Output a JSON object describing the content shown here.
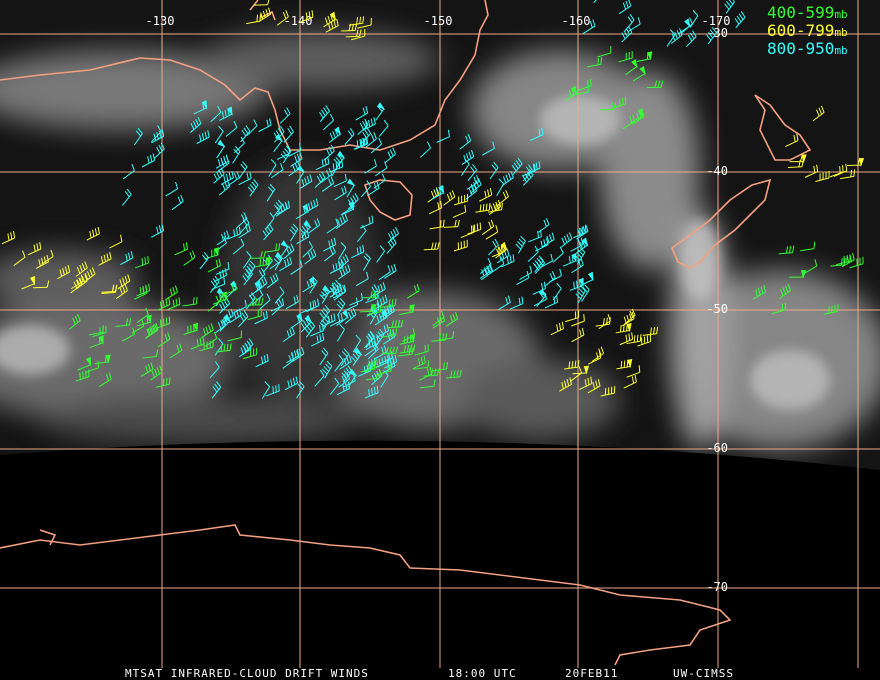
{
  "map": {
    "longitude_labels": [
      "-130",
      "-140",
      "-150",
      "-160",
      "-170"
    ],
    "latitude_labels": [
      "-30",
      "-40",
      "-50",
      "-60",
      "-70"
    ]
  },
  "legend": [
    {
      "range": "400-599",
      "unit": "mb",
      "color": "#33ff33"
    },
    {
      "range": "600-799",
      "unit": "mb",
      "color": "#ffff33"
    },
    {
      "range": "800-950",
      "unit": "mb",
      "color": "#33ffff"
    }
  ],
  "footer": {
    "product": "MTSAT INFRARED-CLOUD DRIFT WINDS",
    "time": "18:00 UTC",
    "date": "20FEB11",
    "source": "UW-CIMSS"
  }
}
